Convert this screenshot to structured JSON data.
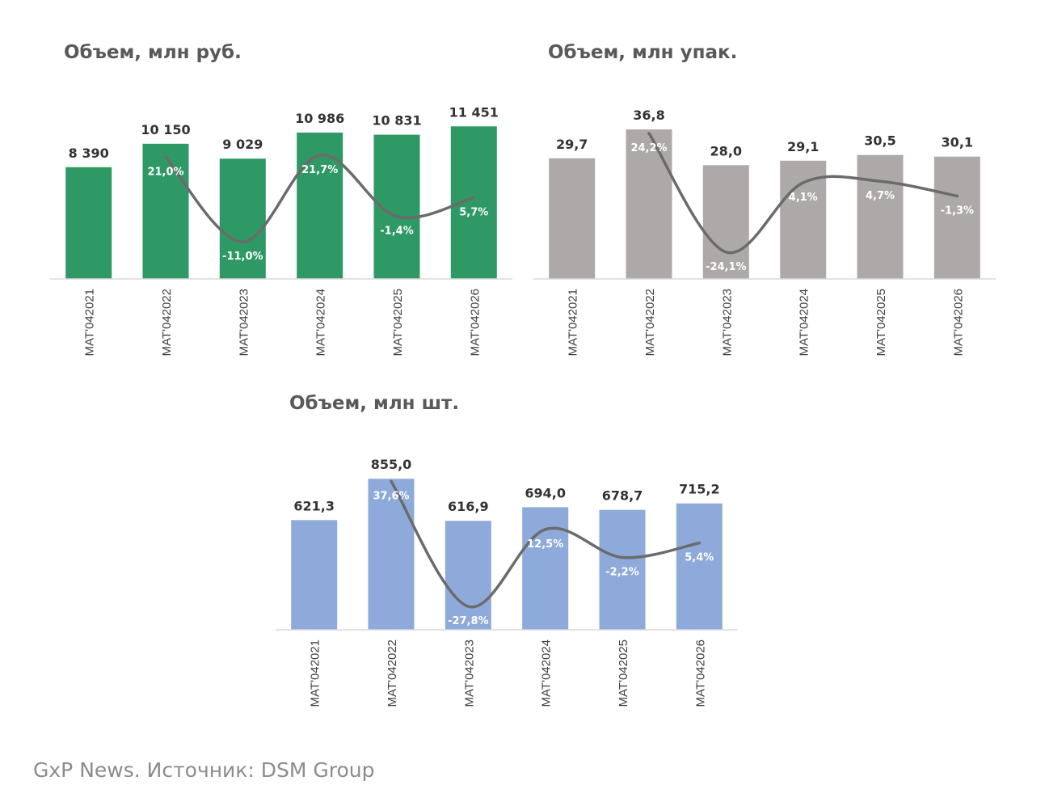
{
  "source": "GxP News. Источник: DSM Group",
  "chart_data": [
    {
      "type": "bar",
      "title": "Объем, млн руб.",
      "categories": [
        "MAT'042021",
        "MAT'042022",
        "MAT'042023",
        "MAT'042024",
        "MAT'042025",
        "MAT'042026"
      ],
      "series": [
        {
          "values": [
            8390,
            10150,
            9029,
            10986,
            10831,
            11451
          ],
          "value_labels": [
            "8 390",
            "10 150",
            "9 029",
            "10 986",
            "10 831",
            "11 451"
          ],
          "color": "#2e9965"
        },
        {
          "type": "line",
          "values": [
            null,
            21.0,
            -11.0,
            21.7,
            -1.4,
            5.7
          ],
          "value_labels": [
            "",
            "21,0%",
            "-11,0%",
            "21,7%",
            "-1,4%",
            "5,7%"
          ],
          "color": "#6b6b6b"
        }
      ],
      "ylim": [
        0,
        12200
      ],
      "growth_ylim": [
        -25,
        40
      ]
    },
    {
      "type": "bar",
      "title": "Объем, млн упак.",
      "categories": [
        "MAT'042021",
        "MAT'042022",
        "MAT'042023",
        "MAT'042024",
        "MAT'042025",
        "MAT'042026"
      ],
      "series": [
        {
          "values": [
            29.7,
            36.8,
            28.0,
            29.1,
            30.5,
            30.1
          ],
          "value_labels": [
            "29,7",
            "36,8",
            "28,0",
            "29,1",
            "30,5",
            "30,1"
          ],
          "color": "#ada9a8"
        },
        {
          "type": "line",
          "values": [
            null,
            24.2,
            -24.1,
            4.1,
            4.7,
            -1.3
          ],
          "value_labels": [
            "",
            "24,2%",
            "-24,1%",
            "4,1%",
            "4,7%",
            "-1,3%"
          ],
          "color": "#6b6b6b"
        }
      ],
      "ylim": [
        0,
        40
      ],
      "growth_ylim": [
        -35,
        35
      ]
    },
    {
      "type": "bar",
      "title": "Объем, млн шт.",
      "categories": [
        "MAT'042021",
        "MAT'042022",
        "MAT'042023",
        "MAT'042024",
        "MAT'042025",
        "MAT'042026"
      ],
      "series": [
        {
          "values": [
            621.3,
            855.0,
            616.9,
            694.0,
            678.7,
            715.2
          ],
          "value_labels": [
            "621,3",
            "855,0",
            "616,9",
            "694,0",
            "678,7",
            "715,2"
          ],
          "color": "#8eaadb"
        },
        {
          "type": "line",
          "values": [
            null,
            37.6,
            -27.8,
            12.5,
            -2.2,
            5.4
          ],
          "value_labels": [
            "",
            "37,6%",
            "-27,8%",
            "12,5%",
            "-2,2%",
            "5,4%"
          ],
          "color": "#6b6b6b"
        }
      ],
      "ylim": [
        0,
        920
      ],
      "growth_ylim": [
        -40,
        50
      ]
    }
  ]
}
